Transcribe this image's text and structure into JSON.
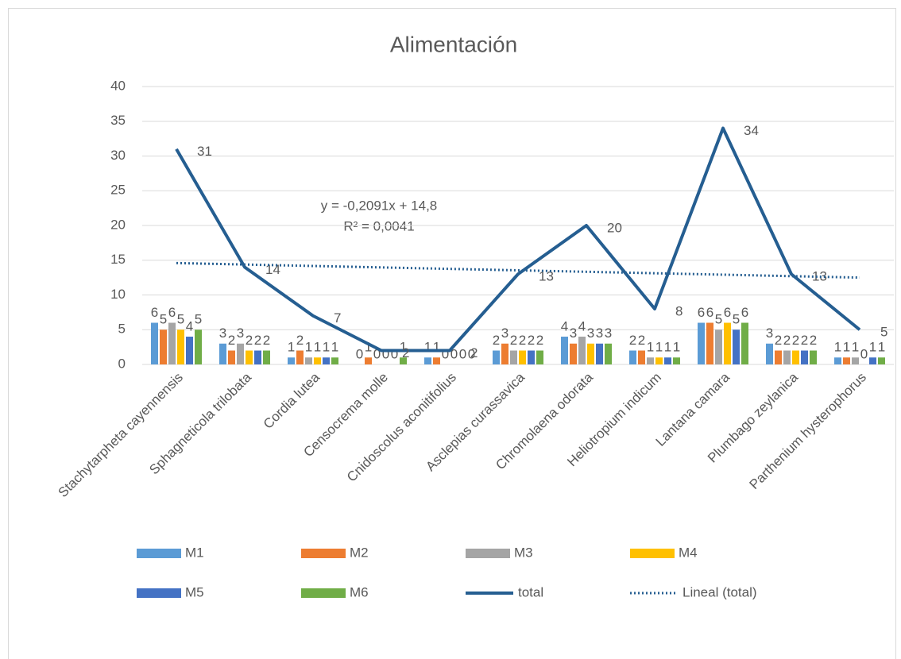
{
  "chart_data": {
    "type": "bar_line",
    "title": "Alimentación",
    "categories": [
      "Stachytarpheta cayennensis",
      "Sphagneticola trilobata",
      "Cordia lutea",
      "Censocrema molle",
      "Cnidoscolus aconitifolius",
      "Asclepias curassavica",
      "Chromolaena odorata",
      "Heliotropium indicum",
      "Lantana camara",
      "Plumbago zeylanica",
      "Parthenium hysterophorus"
    ],
    "series": [
      {
        "name": "M1",
        "color": "#5b9bd5",
        "type": "bar",
        "values": [
          6,
          3,
          1,
          0,
          1,
          2,
          4,
          2,
          6,
          3,
          1
        ]
      },
      {
        "name": "M2",
        "color": "#ed7d31",
        "type": "bar",
        "values": [
          5,
          2,
          2,
          1,
          1,
          3,
          3,
          2,
          6,
          2,
          1
        ]
      },
      {
        "name": "M3",
        "color": "#a5a5a5",
        "type": "bar",
        "values": [
          6,
          3,
          1,
          0,
          0,
          2,
          4,
          1,
          5,
          2,
          1
        ]
      },
      {
        "name": "M4",
        "color": "#ffc000",
        "type": "bar",
        "values": [
          5,
          2,
          1,
          0,
          0,
          2,
          3,
          1,
          6,
          2,
          0
        ]
      },
      {
        "name": "M5",
        "color": "#4472c4",
        "type": "bar",
        "values": [
          4,
          2,
          1,
          0,
          0,
          2,
          3,
          1,
          5,
          2,
          1
        ]
      },
      {
        "name": "M6",
        "color": "#70ad47",
        "type": "bar",
        "values": [
          5,
          2,
          1,
          1,
          0,
          2,
          3,
          1,
          6,
          2,
          1
        ]
      },
      {
        "name": "total",
        "color": "#255e91",
        "type": "line",
        "values": [
          31,
          14,
          7,
          2,
          2,
          13,
          20,
          8,
          34,
          13,
          5
        ]
      }
    ],
    "trendline": {
      "name": "Lineal (total)",
      "color": "#255e91",
      "equation": "y = -0,2091x + 14,8",
      "r_squared": "R² = 0,0041",
      "slope": -0.2091,
      "intercept": 14.8
    },
    "ylim": [
      0,
      40
    ],
    "yticks": [
      0,
      5,
      10,
      15,
      20,
      25,
      30,
      35,
      40
    ],
    "grid": true
  }
}
